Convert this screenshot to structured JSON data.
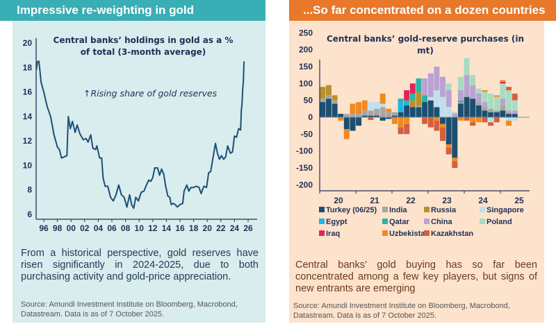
{
  "left": {
    "header": "Impressive re-weighting in gold",
    "body": "From a historical perspective, gold reserves have risen significantly in 2024-2025, due to both purchasing activity and gold-price appreciation.",
    "source": "Source: Amundi Investment Institute on Bloomberg, Macrobond, Datastream. Data is as of 7 October 2025.",
    "colors": {
      "header": "#3aaeb5",
      "panel": "#d9ecee",
      "line": "#1d4e75"
    }
  },
  "right": {
    "header": "...So far concentrated on a dozen countries",
    "body": "Central banks’ gold buying has so far been concentrated among a few key players, but signs of new entrants are emerging",
    "source": "Source: Amundi Investment Institute on Bloomberg, Macrobond, Datastream. Data is as of 7 October 2025.",
    "colors": {
      "header": "#e8782a",
      "panel": "#fde3cc"
    }
  },
  "chart_data": [
    {
      "type": "line",
      "title_lines": [
        "Central banks’ holdings in gold as a %",
        "of total (3-month average)"
      ],
      "annotation": "↑Rising share of gold reserves",
      "xlabel": "",
      "ylabel": "",
      "ylim": [
        6,
        20
      ],
      "yticks": [
        "6",
        "8",
        "10",
        "12",
        "14",
        "16",
        "18",
        "20"
      ],
      "xticks": [
        "96",
        "98",
        "00",
        "02",
        "04",
        "06",
        "08",
        "10",
        "12",
        "14",
        "16",
        "18",
        "20",
        "22",
        "24",
        "26"
      ],
      "grid": false,
      "x": [
        1994.9,
        1995.1,
        1995.3,
        1995.6,
        1996.0,
        1996.5,
        1997.0,
        1997.5,
        1998.0,
        1998.3,
        1998.6,
        1999.0,
        1999.4,
        1999.6,
        1999.9,
        2000.2,
        2000.6,
        2000.9,
        2001.3,
        2001.8,
        2002.2,
        2002.5,
        2002.9,
        2003.2,
        2003.6,
        2003.8,
        2004.2,
        2004.5,
        2004.7,
        2005.0,
        2005.4,
        2005.8,
        2006.2,
        2006.6,
        2007.0,
        2007.4,
        2007.8,
        2008.2,
        2008.6,
        2008.9,
        2009.2,
        2009.5,
        2009.9,
        2010.3,
        2010.7,
        2011.0,
        2011.4,
        2011.7,
        2012.0,
        2012.3,
        2012.7,
        2013.0,
        2013.3,
        2013.6,
        2013.9,
        2014.2,
        2014.5,
        2014.7,
        2015.0,
        2015.3,
        2015.6,
        2016.0,
        2016.4,
        2016.6,
        2017.0,
        2017.3,
        2017.6,
        2018.0,
        2018.4,
        2018.8,
        2019.1,
        2019.5,
        2019.9,
        2020.2,
        2020.5,
        2020.9,
        2021.2,
        2021.5,
        2021.8,
        2022.1,
        2022.4,
        2022.7,
        2023.0,
        2023.4,
        2023.7,
        2024.0,
        2024.3,
        2024.6,
        2024.9,
        2025.0,
        2025.1,
        2025.2,
        2025.3,
        2025.4
      ],
      "y": [
        17.8,
        18.5,
        18.5,
        16.8,
        16.0,
        14.8,
        14.0,
        12.5,
        11.5,
        11.3,
        10.6,
        10.7,
        10.8,
        14.0,
        13.0,
        13.6,
        12.7,
        13.3,
        12.6,
        12.1,
        12.2,
        11.9,
        12.5,
        11.4,
        11.3,
        11.6,
        10.6,
        10.6,
        9.0,
        8.3,
        8.3,
        7.4,
        7.1,
        7.6,
        8.4,
        7.6,
        7.4,
        6.6,
        7.6,
        6.8,
        6.5,
        7.4,
        7.1,
        7.8,
        7.9,
        8.3,
        8.8,
        8.7,
        9.0,
        9.8,
        9.8,
        9.2,
        9.7,
        9.3,
        8.3,
        7.5,
        7.4,
        6.8,
        6.9,
        6.8,
        6.6,
        6.8,
        6.9,
        7.9,
        8.4,
        7.9,
        8.2,
        8.2,
        8.3,
        8.2,
        7.7,
        8.3,
        8.2,
        9.4,
        9.5,
        10.8,
        11.8,
        11.0,
        10.5,
        10.8,
        10.5,
        10.7,
        11.6,
        11.0,
        11.1,
        12.4,
        12.3,
        13.0,
        12.9,
        14.5,
        15.0,
        16.2,
        16.8,
        18.5
      ]
    },
    {
      "type": "bar",
      "stacked": true,
      "title_lines": [
        "Central banks’ gold-reserve purchases (in",
        "mt)"
      ],
      "xlabel": "",
      "ylabel": "",
      "ylim": [
        -200,
        250
      ],
      "yticks": [
        "250",
        "200",
        "150",
        "100",
        "50",
        "0",
        "-50",
        "-100",
        "-150",
        "-200"
      ],
      "xticks": [
        "20",
        "21",
        "22",
        "23",
        "24",
        "25"
      ],
      "legend": "bottom",
      "periods": 33,
      "series": [
        {
          "name": "Turkey (06/25)",
          "color": "#1b4f72",
          "values": [
            45,
            55,
            40,
            10,
            -35,
            -40,
            -25,
            5,
            5,
            5,
            -10,
            -5,
            5,
            15,
            35,
            30,
            30,
            45,
            50,
            30,
            -20,
            -80,
            -120,
            40,
            60,
            55,
            35,
            20,
            15,
            15,
            20,
            10,
            10
          ]
        },
        {
          "name": "India",
          "color": "#a6a6a6",
          "values": [
            10,
            10,
            10,
            0,
            10,
            10,
            10,
            15,
            15,
            20,
            30,
            15,
            10,
            0,
            0,
            0,
            5,
            0,
            0,
            0,
            0,
            0,
            0,
            5,
            5,
            0,
            10,
            10,
            10,
            5,
            15,
            5,
            0
          ]
        },
        {
          "name": "Russia",
          "color": "#b8902d",
          "values": [
            35,
            30,
            15,
            0,
            0,
            0,
            0,
            0,
            0,
            0,
            0,
            0,
            0,
            0,
            0,
            20,
            40,
            0,
            0,
            0,
            0,
            0,
            0,
            0,
            0,
            0,
            0,
            0,
            0,
            0,
            0,
            0,
            0
          ]
        },
        {
          "name": "Singapore",
          "color": "#bfe0ea",
          "values": [
            0,
            0,
            0,
            0,
            0,
            0,
            0,
            0,
            25,
            20,
            10,
            0,
            0,
            0,
            0,
            0,
            0,
            0,
            10,
            50,
            60,
            30,
            0,
            0,
            0,
            0,
            0,
            0,
            -15,
            0,
            0,
            -10,
            -10
          ]
        },
        {
          "name": "Egypt",
          "color": "#1fb5e6",
          "values": [
            0,
            0,
            0,
            0,
            0,
            0,
            0,
            0,
            0,
            0,
            0,
            0,
            0,
            30,
            10,
            0,
            0,
            0,
            0,
            0,
            0,
            0,
            0,
            0,
            0,
            0,
            0,
            0,
            0,
            0,
            0,
            0,
            0
          ]
        },
        {
          "name": "Qatar",
          "color": "#2bb3a6",
          "values": [
            0,
            0,
            0,
            0,
            0,
            0,
            0,
            0,
            0,
            0,
            0,
            0,
            0,
            10,
            5,
            20,
            40,
            20,
            0,
            0,
            0,
            0,
            0,
            5,
            0,
            0,
            0,
            0,
            0,
            0,
            0,
            0,
            0
          ]
        },
        {
          "name": "China",
          "color": "#b9a3d3",
          "values": [
            0,
            0,
            0,
            0,
            0,
            0,
            0,
            0,
            0,
            0,
            0,
            0,
            0,
            0,
            0,
            0,
            0,
            50,
            70,
            70,
            60,
            50,
            10,
            30,
            60,
            40,
            25,
            15,
            0,
            0,
            20,
            5,
            10
          ]
        },
        {
          "name": "Poland",
          "color": "#a8dcc0",
          "values": [
            0,
            0,
            0,
            0,
            0,
            0,
            0,
            0,
            0,
            0,
            0,
            0,
            0,
            0,
            0,
            0,
            0,
            0,
            0,
            0,
            0,
            20,
            5,
            40,
            50,
            30,
            15,
            30,
            45,
            40,
            45,
            60,
            30
          ]
        },
        {
          "name": "Iraq",
          "color": "#e0245e",
          "values": [
            0,
            0,
            0,
            0,
            0,
            0,
            0,
            0,
            0,
            0,
            0,
            0,
            0,
            0,
            30,
            30,
            0,
            0,
            0,
            0,
            0,
            0,
            0,
            0,
            0,
            0,
            0,
            0,
            0,
            0,
            5,
            0,
            0
          ]
        },
        {
          "name": "Uzbekistan",
          "color": "#f08a24",
          "values": [
            0,
            0,
            0,
            -10,
            -30,
            30,
            35,
            30,
            0,
            0,
            30,
            10,
            -20,
            -30,
            -20,
            0,
            0,
            0,
            0,
            -10,
            -10,
            -10,
            -10,
            -10,
            0,
            -15,
            -15,
            5,
            0,
            5,
            5,
            -15,
            0
          ]
        },
        {
          "name": "Kazakhstan",
          "color": "#d2603f",
          "values": [
            0,
            0,
            0,
            0,
            0,
            0,
            0,
            0,
            -8,
            0,
            0,
            0,
            0,
            -20,
            -30,
            0,
            0,
            -20,
            -30,
            -30,
            -40,
            -20,
            -20,
            0,
            -10,
            -10,
            0,
            -15,
            -10,
            -15,
            0,
            10,
            20
          ]
        }
      ]
    }
  ]
}
